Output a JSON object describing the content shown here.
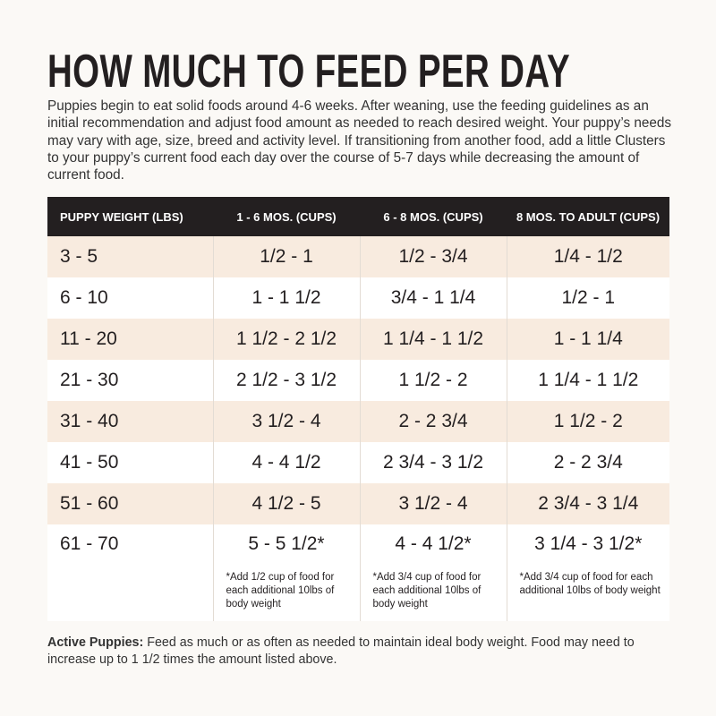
{
  "title": "HOW MUCH TO FEED PER DAY",
  "intro": "Puppies begin to eat solid foods around 4-6 weeks. After weaning, use the feeding guidelines as an initial recommendation and adjust food amount as needed to reach desired weight. Your puppy’s needs may vary with age, size, breed and activity level. If transitioning from another food, add a little Clusters to your puppy’s current food each day over the course of 5-7 days while decreasing the amount of current food.",
  "table": {
    "headers": [
      "PUPPY WEIGHT (LBS)",
      "1 - 6 MOS. (CUPS)",
      "6 - 8 MOS. (CUPS)",
      "8 MOS. TO ADULT (CUPS)"
    ],
    "rows": [
      [
        "3 - 5",
        "1/2 - 1",
        "1/2 - 3/4",
        "1/4 - 1/2"
      ],
      [
        "6 - 10",
        "1 - 1 1/2",
        "3/4 - 1 1/4",
        "1/2 - 1"
      ],
      [
        "11 - 20",
        "1 1/2 - 2 1/2",
        "1 1/4 - 1 1/2",
        "1 - 1 1/4"
      ],
      [
        "21 - 30",
        "2 1/2 - 3 1/2",
        "1 1/2 - 2",
        "1 1/4 - 1 1/2"
      ],
      [
        "31 - 40",
        "3 1/2 - 4",
        "2 - 2 3/4",
        "1 1/2 - 2"
      ],
      [
        "41 - 50",
        "4 - 4 1/2",
        "2 3/4 - 3 1/2",
        "2 - 2 3/4"
      ],
      [
        "51 - 60",
        "4 1/2 - 5",
        "3 1/2 - 4",
        "2 3/4 - 3 1/4"
      ],
      [
        "61 - 70",
        "5 - 5 1/2*",
        "4 - 4 1/2*",
        "3 1/4 - 3 1/2*"
      ]
    ],
    "notes": [
      "*Add 1/2 cup of food for each additional 10lbs of body weight",
      "*Add 3/4 cup of food for each additional 10lbs of body weight",
      "*Add 3/4 cup of food for each additional 10lbs of body weight"
    ]
  },
  "footer": {
    "label": "Active Puppies:",
    "text": "Feed as much or as often as needed to maintain ideal body weight. Food may need to increase up to 1 1/2 times the amount listed above."
  }
}
